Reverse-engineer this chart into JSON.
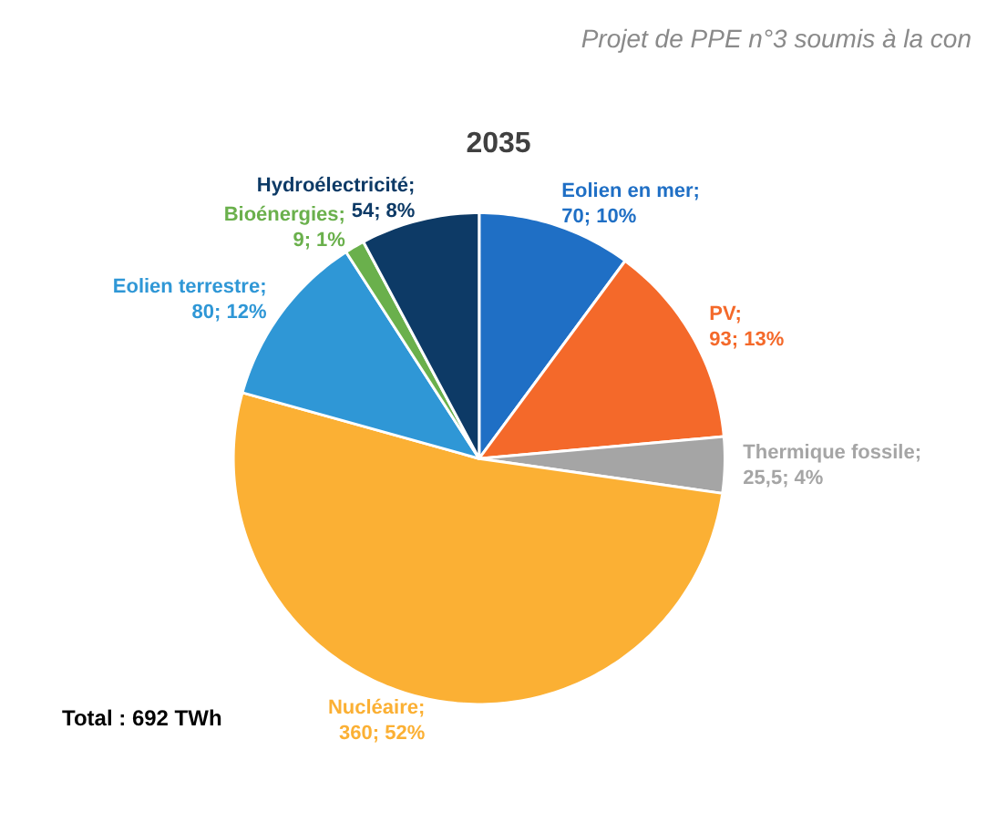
{
  "chart_data": {
    "type": "pie",
    "title": "2035",
    "categories": [
      "Eolien en mer",
      "PV",
      "Thermique fossile",
      "Nucléaire",
      "Eolien terrestre",
      "Bioénergies",
      "Hydroélectricité"
    ],
    "values": [
      70,
      93,
      25.5,
      360,
      80,
      9,
      54
    ],
    "value_labels": [
      "; 70; 10%",
      "; 93; 13%",
      "; 25,5; 4%",
      "; 360; 52%",
      "; 80; 12%",
      "; 9; 1%",
      "; 54; 8%"
    ],
    "colors": [
      "#1f6fc5",
      "#f4692a",
      "#a5a5a5",
      "#fbb034",
      "#2f97d6",
      "#6ab04c",
      "#0d3a66"
    ],
    "annotations": [
      "Projet de PPE n°3 soumis à la con",
      "Total : 692 TWh"
    ]
  }
}
